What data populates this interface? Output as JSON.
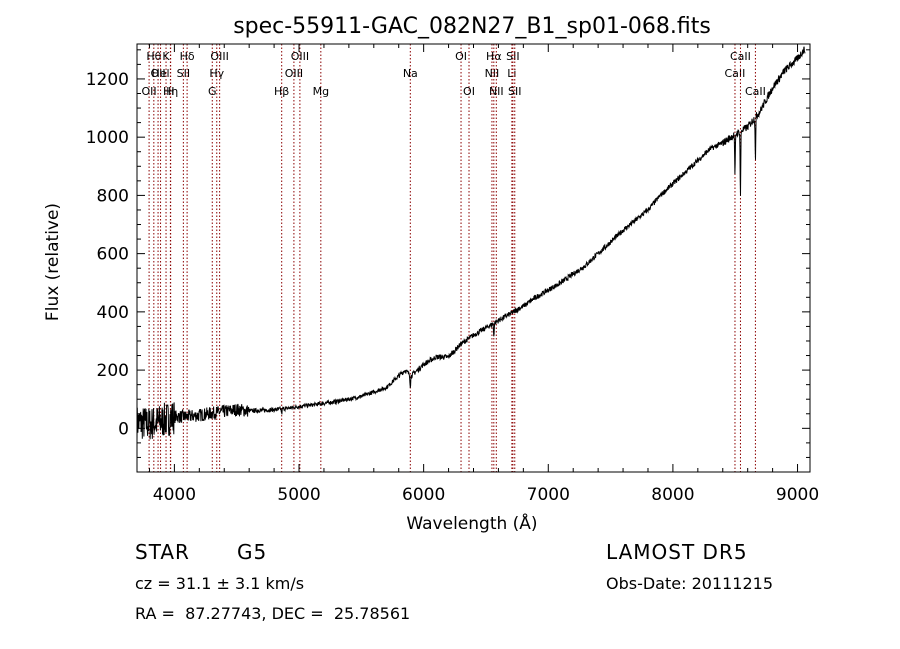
{
  "chart_data": {
    "type": "line",
    "title": "spec-55911-GAC_082N27_B1_sp01-068.fits",
    "xlabel": "Wavelength (Å)",
    "ylabel": "Flux (relative)",
    "xlim": [
      3700,
      9100
    ],
    "ylim": [
      -150,
      1320
    ],
    "xticks": [
      "4000",
      "5000",
      "6000",
      "7000",
      "8000",
      "9000"
    ],
    "yticks": [
      "0",
      "200",
      "400",
      "600",
      "800",
      "1000",
      "1200"
    ],
    "grid": false,
    "line_color": "#8b0000",
    "lines": [
      {
        "wl": 3797,
        "label": "OII",
        "row": 3
      },
      {
        "wl": 3835,
        "label": "Hθ",
        "row": 1
      },
      {
        "wl": 3869,
        "label": "OII",
        "row": 2
      },
      {
        "wl": 3889,
        "label": "Hel",
        "row": 2
      },
      {
        "wl": 3933,
        "label": "K",
        "row": 1
      },
      {
        "wl": 3970,
        "label": "Hη",
        "row": 3
      },
      {
        "wl": 3968,
        "label": "H",
        "row": 3
      },
      {
        "wl": 4072,
        "label": "SII",
        "row": 2
      },
      {
        "wl": 4102,
        "label": "Hδ",
        "row": 1
      },
      {
        "wl": 4304,
        "label": "G",
        "row": 3
      },
      {
        "wl": 4340,
        "label": "Hγ",
        "row": 2
      },
      {
        "wl": 4363,
        "label": "OIII",
        "row": 1
      },
      {
        "wl": 4861,
        "label": "Hβ",
        "row": 3
      },
      {
        "wl": 4959,
        "label": "OIII",
        "row": 2
      },
      {
        "wl": 5007,
        "label": "OIII",
        "row": 1
      },
      {
        "wl": 5175,
        "label": "Mg",
        "row": 3
      },
      {
        "wl": 5893,
        "label": "Na",
        "row": 2
      },
      {
        "wl": 6300,
        "label": "OI",
        "row": 1
      },
      {
        "wl": 6364,
        "label": "OI",
        "row": 3
      },
      {
        "wl": 6548,
        "label": "NII",
        "row": 2
      },
      {
        "wl": 6563,
        "label": "Hα",
        "row": 1
      },
      {
        "wl": 6583,
        "label": "NII",
        "row": 3
      },
      {
        "wl": 6708,
        "label": "Li",
        "row": 2
      },
      {
        "wl": 6716,
        "label": "SII",
        "row": 1
      },
      {
        "wl": 6731,
        "label": "SII",
        "row": 3
      },
      {
        "wl": 8498,
        "label": "CaII",
        "row": 2
      },
      {
        "wl": 8542,
        "label": "CaII",
        "row": 1
      },
      {
        "wl": 8662,
        "label": "CaII",
        "row": 3
      }
    ],
    "spectrum_nodes": [
      [
        3700,
        20
      ],
      [
        3800,
        15
      ],
      [
        3900,
        25
      ],
      [
        4000,
        40
      ],
      [
        4100,
        40
      ],
      [
        4200,
        45
      ],
      [
        4300,
        52
      ],
      [
        4400,
        58
      ],
      [
        4500,
        64
      ],
      [
        4600,
        60
      ],
      [
        4700,
        62
      ],
      [
        4800,
        64
      ],
      [
        4900,
        68
      ],
      [
        5000,
        75
      ],
      [
        5100,
        80
      ],
      [
        5200,
        86
      ],
      [
        5300,
        92
      ],
      [
        5400,
        100
      ],
      [
        5500,
        110
      ],
      [
        5600,
        125
      ],
      [
        5700,
        140
      ],
      [
        5800,
        180
      ],
      [
        5850,
        200
      ],
      [
        5900,
        180
      ],
      [
        6000,
        220
      ],
      [
        6100,
        245
      ],
      [
        6200,
        245
      ],
      [
        6300,
        290
      ],
      [
        6400,
        320
      ],
      [
        6500,
        345
      ],
      [
        6600,
        370
      ],
      [
        6700,
        395
      ],
      [
        6800,
        420
      ],
      [
        6900,
        450
      ],
      [
        7000,
        475
      ],
      [
        7100,
        500
      ],
      [
        7200,
        530
      ],
      [
        7300,
        560
      ],
      [
        7400,
        600
      ],
      [
        7500,
        640
      ],
      [
        7600,
        680
      ],
      [
        7700,
        715
      ],
      [
        7800,
        750
      ],
      [
        7900,
        800
      ],
      [
        8000,
        840
      ],
      [
        8100,
        880
      ],
      [
        8200,
        920
      ],
      [
        8300,
        960
      ],
      [
        8400,
        980
      ],
      [
        8500,
        1010
      ],
      [
        8600,
        1035
      ],
      [
        8700,
        1090
      ],
      [
        8800,
        1170
      ],
      [
        8900,
        1230
      ],
      [
        9000,
        1270
      ],
      [
        9050,
        1300
      ]
    ]
  },
  "meta": {
    "object_class": "STAR",
    "subclass": "G5",
    "survey": "LAMOST DR5",
    "redshift": "cz = 31.1 ± 3.1 km/s",
    "obs_date": "Obs-Date: 20111215",
    "coords": "RA =  87.27743, DEC =  25.78561"
  }
}
